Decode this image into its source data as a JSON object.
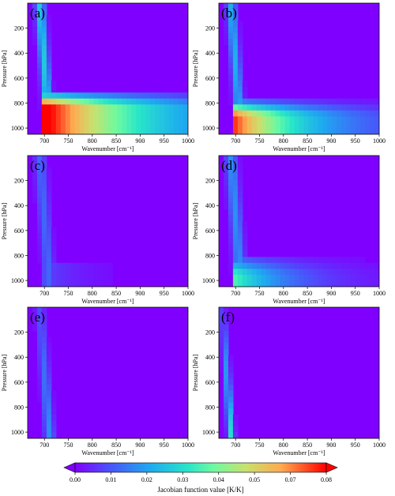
{
  "chart_data": {
    "type": "heatmap",
    "panels": [
      {
        "label": "(a)",
        "variant": "strong_lower"
      },
      {
        "label": "(b)",
        "variant": "medium_lower"
      },
      {
        "label": "(c)",
        "variant": "weak_lower"
      },
      {
        "label": "(d)",
        "variant": "band_lower"
      },
      {
        "label": "(e)",
        "variant": "edge_only"
      },
      {
        "label": "(f)",
        "variant": "thin_edge"
      }
    ],
    "xlabel": "Wavenumber [cm⁻¹]",
    "ylabel": "Pressure [hPa]",
    "x_ticks": [
      700,
      750,
      800,
      850,
      900,
      950,
      1000
    ],
    "y_ticks": [
      200,
      400,
      600,
      800,
      1000
    ],
    "xlim": [
      665,
      1000
    ],
    "ylim": [
      1050,
      0
    ],
    "colorbar": {
      "label": "Jacobian function value [K/K]",
      "ticks": [
        "0.00",
        "0.01",
        "0.02",
        "0.03",
        "0.04",
        "0.05",
        "0.07",
        "0.08"
      ],
      "range": [
        0,
        0.08
      ],
      "extend": "both",
      "colormap": "rainbow"
    }
  }
}
